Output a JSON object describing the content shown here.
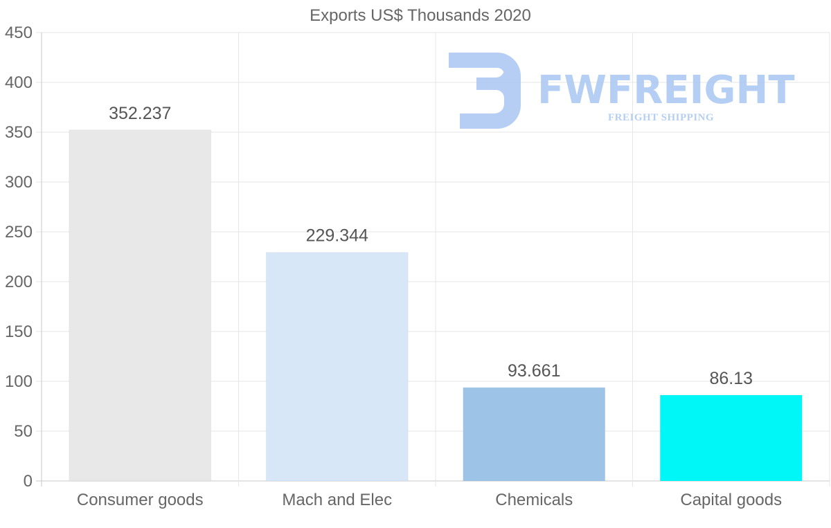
{
  "chart_data": {
    "type": "bar",
    "title": "Exports US$ Thousands 2020",
    "categories": [
      "Consumer goods",
      "Mach and Elec",
      "Chemicals",
      "Capital goods"
    ],
    "values": [
      352.237,
      229.344,
      93.661,
      86.13
    ],
    "value_labels": [
      "352.237",
      "229.344",
      "93.661",
      "86.13"
    ],
    "bar_colors": [
      "#e8e8e8",
      "#d7e7f8",
      "#9dc3e7",
      "#00f7f7"
    ],
    "ylim": [
      0,
      450
    ],
    "yticks": [
      0,
      50,
      100,
      150,
      200,
      250,
      300,
      350,
      400,
      450
    ],
    "xlabel": "",
    "ylabel": "",
    "grid": true,
    "legend": "none"
  },
  "watermark": {
    "brand": "FWFREIGHT",
    "tagline": "FREIGHT SHIPPING",
    "color": "#a9c6f2"
  }
}
